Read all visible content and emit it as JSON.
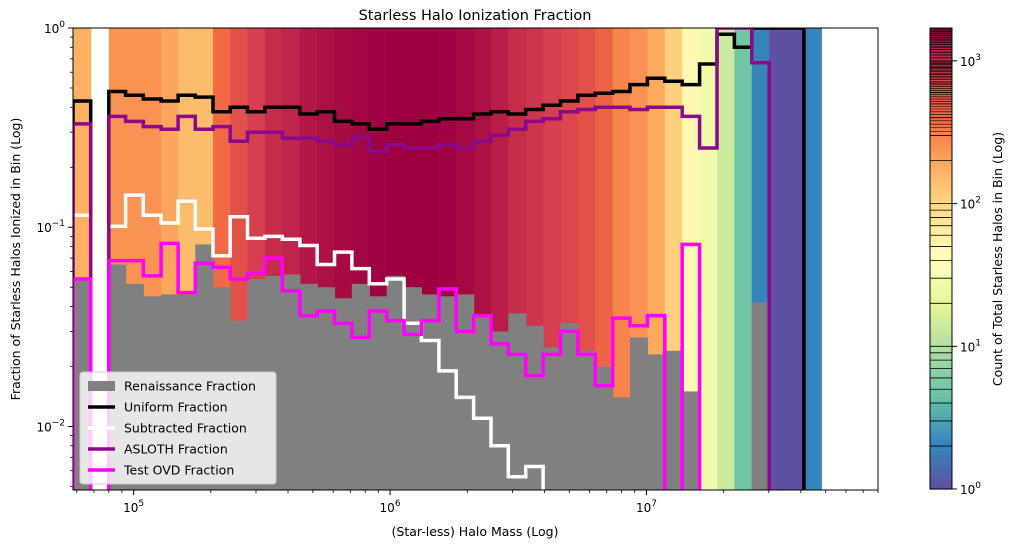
{
  "chart_data": {
    "type": "bar",
    "title": "Starless Halo Ionization Fraction",
    "xlabel": "(Star-less) Halo Mass (Log)",
    "ylabel": "Fraction of Starless Halos Ionized in Bin (Log)",
    "xscale": "log",
    "yscale": "log",
    "xlim": [
      58000,
      80000000
    ],
    "ylim": [
      0.0048,
      1.0
    ],
    "x_ticks": [
      {
        "value": 100000,
        "base": "10",
        "exp": "5"
      },
      {
        "value": 1000000,
        "base": "10",
        "exp": "6"
      },
      {
        "value": 10000000,
        "base": "10",
        "exp": "7"
      }
    ],
    "y_ticks": [
      {
        "value": 0.01,
        "base": "10",
        "exp": "−2"
      },
      {
        "value": 0.1,
        "base": "10",
        "exp": "−1"
      },
      {
        "value": 1.0,
        "base": "10",
        "exp": "0"
      }
    ],
    "bin_edges": [
      58000,
      68000,
      80000,
      93000,
      109000,
      128000,
      149000,
      174000,
      204000,
      238000,
      278000,
      325000,
      380000,
      445000,
      520000,
      607000,
      710000,
      830000,
      970000,
      1134000,
      1325000,
      1550000,
      1811000,
      2117000,
      2475000,
      2893000,
      3382000,
      3953000,
      4621000,
      5402000,
      6315000,
      7382000,
      8630000,
      10089000,
      11794000,
      13787000,
      16117000,
      18841000,
      22025000,
      25748000,
      30100000,
      35187000,
      41134000,
      48086000,
      56213000,
      65713000,
      80000000
    ],
    "series": [
      {
        "name": "Renaissance Fraction",
        "style": "filled-step",
        "color": "#808080",
        "values": [
          0.055,
          0.0,
          0.065,
          0.052,
          0.045,
          0.046,
          0.047,
          0.082,
          0.05,
          0.034,
          0.055,
          0.057,
          0.058,
          0.052,
          0.05,
          0.044,
          0.052,
          0.045,
          0.057,
          0.05,
          0.046,
          0.045,
          0.046,
          0.036,
          0.03,
          0.037,
          0.032,
          0.025,
          0.033,
          0.024,
          0.02,
          0.014,
          0.028,
          0.023,
          0.024,
          0.015,
          0.0,
          0.0,
          0.0,
          0.042,
          0.0,
          0.0,
          0.0,
          0.0
        ]
      },
      {
        "name": "Uniform Fraction",
        "style": "step",
        "color": "#000000",
        "values": [
          0.43,
          0.0,
          0.48,
          0.46,
          0.44,
          0.43,
          0.46,
          0.45,
          0.38,
          0.4,
          0.38,
          0.4,
          0.4,
          0.37,
          0.38,
          0.34,
          0.33,
          0.31,
          0.33,
          0.33,
          0.34,
          0.35,
          0.35,
          0.37,
          0.38,
          0.37,
          0.39,
          0.41,
          0.43,
          0.46,
          0.47,
          0.48,
          0.52,
          0.56,
          0.54,
          0.52,
          0.66,
          0.93,
          0.8,
          1.0,
          1.0,
          1.0
        ]
      },
      {
        "name": "Subtracted Fraction",
        "style": "step",
        "color": "#ffffff",
        "values": [
          0.115,
          0.0,
          0.101,
          0.145,
          0.115,
          0.105,
          0.135,
          0.098,
          0.072,
          0.113,
          0.088,
          0.09,
          0.087,
          0.081,
          0.065,
          0.075,
          0.062,
          0.052,
          0.055,
          0.033,
          0.027,
          0.019,
          0.014,
          0.011,
          0.008,
          0.0056,
          0.0063,
          0.0045
        ]
      },
      {
        "name": "ASLOTH Fraction",
        "style": "step",
        "color": "#8b0a8b",
        "values": [
          0.33,
          0.0,
          0.36,
          0.34,
          0.32,
          0.31,
          0.36,
          0.31,
          0.32,
          0.27,
          0.3,
          0.3,
          0.28,
          0.28,
          0.27,
          0.26,
          0.28,
          0.24,
          0.26,
          0.25,
          0.25,
          0.26,
          0.25,
          0.27,
          0.29,
          0.31,
          0.34,
          0.35,
          0.38,
          0.39,
          0.4,
          0.4,
          0.39,
          0.4,
          0.4,
          0.36,
          0.25,
          1.0,
          1.0,
          0.67
        ]
      },
      {
        "name": "Test OVD Fraction",
        "style": "step",
        "color": "#ff00ff",
        "values": [
          0.055,
          0.0,
          0.068,
          0.068,
          0.057,
          0.083,
          0.047,
          0.066,
          0.063,
          0.055,
          0.059,
          0.07,
          0.048,
          0.036,
          0.038,
          0.033,
          0.028,
          0.038,
          0.034,
          0.029,
          0.034,
          0.049,
          0.03,
          0.036,
          0.026,
          0.023,
          0.018,
          0.023,
          0.03,
          0.023,
          0.016,
          0.035,
          0.032,
          0.036,
          0.0,
          0.082,
          0.0
        ]
      }
    ],
    "background_heatmap": {
      "label": "Count of Total Starless Halos in Bin (Log)",
      "colormap": "Spectral_r",
      "scale": "log",
      "lim": [
        1,
        1700
      ],
      "counts": [
        180,
        0,
        250,
        250,
        250,
        200,
        150,
        150,
        400,
        600,
        800,
        1000,
        1100,
        1300,
        1400,
        1500,
        1600,
        1650,
        1700,
        1700,
        1700,
        1650,
        1550,
        1400,
        1200,
        1000,
        900,
        800,
        700,
        600,
        450,
        300,
        250,
        190,
        110,
        50,
        28,
        14,
        5,
        2,
        1,
        1,
        2
      ]
    },
    "colorbar_ticks": [
      {
        "value": 1,
        "base": "10",
        "exp": "0"
      },
      {
        "value": 10,
        "base": "10",
        "exp": "1"
      },
      {
        "value": 100,
        "base": "10",
        "exp": "2"
      },
      {
        "value": 1000,
        "base": "10",
        "exp": "3"
      }
    ],
    "legend": {
      "position": "lower-left",
      "entries": [
        "Renaissance Fraction",
        "Uniform Fraction",
        "Subtracted Fraction",
        "ASLOTH Fraction",
        "Test OVD Fraction"
      ]
    },
    "grid": false
  }
}
